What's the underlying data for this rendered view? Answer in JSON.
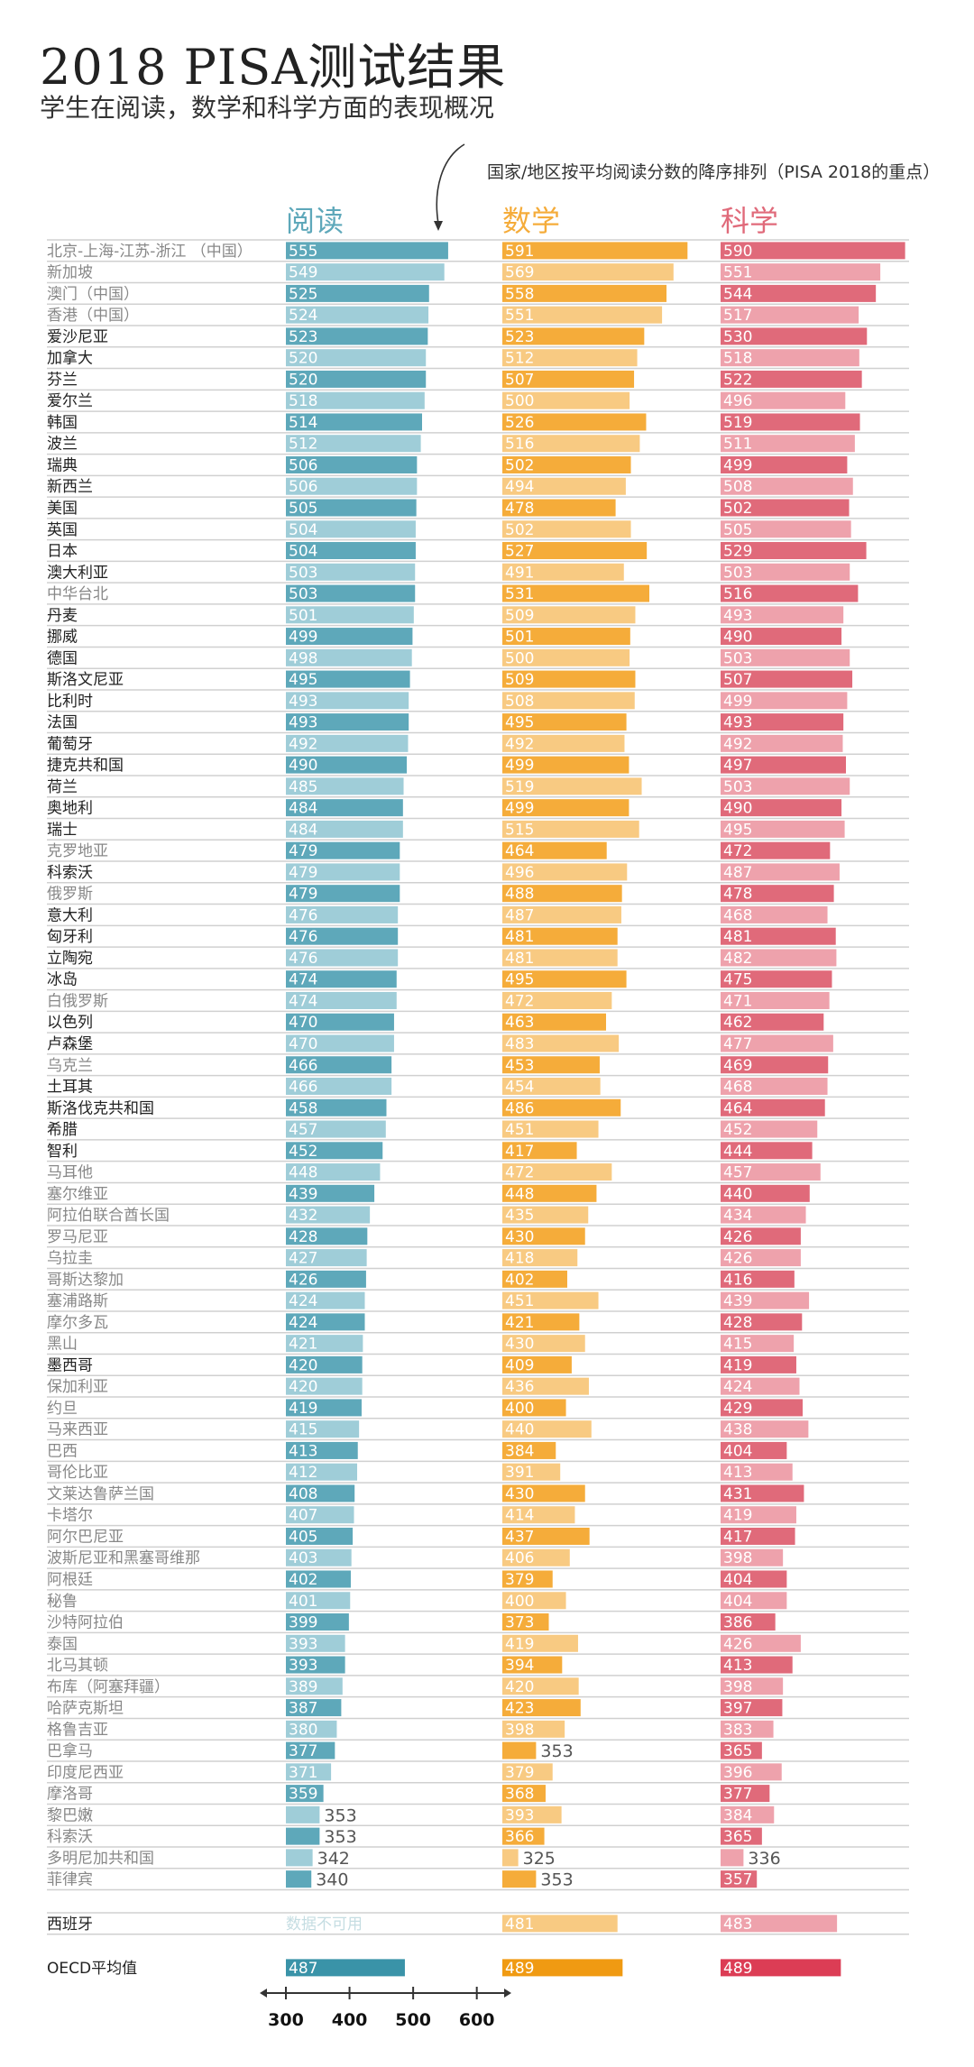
{
  "title": "2018 PISA测试结果",
  "subtitle": "学生在阅读，数学和科学方面的表现概况",
  "chart_data": {
    "type": "bar",
    "title": "2018 PISA测试结果",
    "subtitle": "学生在阅读，数学和科学方面的表现概况",
    "annotation": "国家/地区按平均阅读分数的降序排列（PISA 2018的重点）",
    "series_names": [
      "阅读",
      "数学",
      "科学"
    ],
    "colors": {
      "reading": [
        "#5ea8ba",
        "#9fcdd8",
        "#3a93a8"
      ],
      "math": [
        "#f5ac3a",
        "#f8ca82",
        "#f09a12"
      ],
      "science": [
        "#e06a7a",
        "#eea2ac",
        "#dc3d55"
      ]
    },
    "xlim": [
      300,
      640
    ],
    "ticks": [
      300,
      400,
      500,
      600
    ],
    "rows": [
      {
        "name": "北京-上海-江苏-浙江 （中国）",
        "oecd": false,
        "values": [
          555,
          591,
          590
        ]
      },
      {
        "name": "新加坡",
        "oecd": false,
        "values": [
          549,
          569,
          551
        ]
      },
      {
        "name": "澳门（中国）",
        "oecd": false,
        "values": [
          525,
          558,
          544
        ]
      },
      {
        "name": "香港（中国）",
        "oecd": false,
        "values": [
          524,
          551,
          517
        ]
      },
      {
        "name": "爱沙尼亚",
        "oecd": true,
        "values": [
          523,
          523,
          530
        ]
      },
      {
        "name": "加拿大",
        "oecd": true,
        "values": [
          520,
          512,
          518
        ]
      },
      {
        "name": "芬兰",
        "oecd": true,
        "values": [
          520,
          507,
          522
        ]
      },
      {
        "name": "爱尔兰",
        "oecd": true,
        "values": [
          518,
          500,
          496
        ]
      },
      {
        "name": "韩国",
        "oecd": true,
        "values": [
          514,
          526,
          519
        ]
      },
      {
        "name": "波兰",
        "oecd": true,
        "values": [
          512,
          516,
          511
        ]
      },
      {
        "name": "瑞典",
        "oecd": true,
        "values": [
          506,
          502,
          499
        ]
      },
      {
        "name": "新西兰",
        "oecd": true,
        "values": [
          506,
          494,
          508
        ]
      },
      {
        "name": "美国",
        "oecd": true,
        "values": [
          505,
          478,
          502
        ]
      },
      {
        "name": "英国",
        "oecd": true,
        "values": [
          504,
          502,
          505
        ]
      },
      {
        "name": "日本",
        "oecd": true,
        "values": [
          504,
          527,
          529
        ]
      },
      {
        "name": "澳大利亚",
        "oecd": true,
        "values": [
          503,
          491,
          503
        ]
      },
      {
        "name": "中华台北",
        "oecd": false,
        "values": [
          503,
          531,
          516
        ]
      },
      {
        "name": "丹麦",
        "oecd": true,
        "values": [
          501,
          509,
          493
        ]
      },
      {
        "name": "挪威",
        "oecd": true,
        "values": [
          499,
          501,
          490
        ]
      },
      {
        "name": "德国",
        "oecd": true,
        "values": [
          498,
          500,
          503
        ]
      },
      {
        "name": "斯洛文尼亚",
        "oecd": true,
        "values": [
          495,
          509,
          507
        ]
      },
      {
        "name": "比利时",
        "oecd": true,
        "values": [
          493,
          508,
          499
        ]
      },
      {
        "name": "法国",
        "oecd": true,
        "values": [
          493,
          495,
          493
        ]
      },
      {
        "name": "葡萄牙",
        "oecd": true,
        "values": [
          492,
          492,
          492
        ]
      },
      {
        "name": "捷克共和国",
        "oecd": true,
        "values": [
          490,
          499,
          497
        ]
      },
      {
        "name": "荷兰",
        "oecd": true,
        "values": [
          485,
          519,
          503
        ]
      },
      {
        "name": "奥地利",
        "oecd": true,
        "values": [
          484,
          499,
          490
        ]
      },
      {
        "name": "瑞士",
        "oecd": true,
        "values": [
          484,
          515,
          495
        ]
      },
      {
        "name": "克罗地亚",
        "oecd": false,
        "values": [
          479,
          464,
          472
        ]
      },
      {
        "name": "科索沃",
        "oecd": true,
        "values": [
          479,
          496,
          487
        ]
      },
      {
        "name": "俄罗斯",
        "oecd": false,
        "values": [
          479,
          488,
          478
        ]
      },
      {
        "name": "意大利",
        "oecd": true,
        "values": [
          476,
          487,
          468
        ]
      },
      {
        "name": "匈牙利",
        "oecd": true,
        "values": [
          476,
          481,
          481
        ]
      },
      {
        "name": "立陶宛",
        "oecd": true,
        "values": [
          476,
          481,
          482
        ]
      },
      {
        "name": "冰岛",
        "oecd": true,
        "values": [
          474,
          495,
          475
        ]
      },
      {
        "name": "白俄罗斯",
        "oecd": false,
        "values": [
          474,
          472,
          471
        ]
      },
      {
        "name": "以色列",
        "oecd": true,
        "values": [
          470,
          463,
          462
        ]
      },
      {
        "name": "卢森堡",
        "oecd": true,
        "values": [
          470,
          483,
          477
        ]
      },
      {
        "name": "乌克兰",
        "oecd": false,
        "values": [
          466,
          453,
          469
        ]
      },
      {
        "name": "土耳其",
        "oecd": true,
        "values": [
          466,
          454,
          468
        ]
      },
      {
        "name": "斯洛伐克共和国",
        "oecd": true,
        "values": [
          458,
          486,
          464
        ]
      },
      {
        "name": "希腊",
        "oecd": true,
        "values": [
          457,
          451,
          452
        ]
      },
      {
        "name": "智利",
        "oecd": true,
        "values": [
          452,
          417,
          444
        ]
      },
      {
        "name": "马耳他",
        "oecd": false,
        "values": [
          448,
          472,
          457
        ]
      },
      {
        "name": "塞尔维亚",
        "oecd": false,
        "values": [
          439,
          448,
          440
        ]
      },
      {
        "name": "阿拉伯联合酋长国",
        "oecd": false,
        "values": [
          432,
          435,
          434
        ]
      },
      {
        "name": "罗马尼亚",
        "oecd": false,
        "values": [
          428,
          430,
          426
        ]
      },
      {
        "name": "乌拉圭",
        "oecd": false,
        "values": [
          427,
          418,
          426
        ]
      },
      {
        "name": "哥斯达黎加",
        "oecd": false,
        "values": [
          426,
          402,
          416
        ]
      },
      {
        "name": "塞浦路斯",
        "oecd": false,
        "values": [
          424,
          451,
          439
        ]
      },
      {
        "name": "摩尔多瓦",
        "oecd": false,
        "values": [
          424,
          421,
          428
        ]
      },
      {
        "name": "黑山",
        "oecd": false,
        "values": [
          421,
          430,
          415
        ]
      },
      {
        "name": "墨西哥",
        "oecd": true,
        "values": [
          420,
          409,
          419
        ]
      },
      {
        "name": "保加利亚",
        "oecd": false,
        "values": [
          420,
          436,
          424
        ]
      },
      {
        "name": "约旦",
        "oecd": false,
        "values": [
          419,
          400,
          429
        ]
      },
      {
        "name": "马来西亚",
        "oecd": false,
        "values": [
          415,
          440,
          438
        ]
      },
      {
        "name": "巴西",
        "oecd": false,
        "values": [
          413,
          384,
          404
        ]
      },
      {
        "name": "哥伦比亚",
        "oecd": false,
        "values": [
          412,
          391,
          413
        ]
      },
      {
        "name": "文莱达鲁萨兰国",
        "oecd": false,
        "values": [
          408,
          430,
          431
        ]
      },
      {
        "name": "卡塔尔",
        "oecd": false,
        "values": [
          407,
          414,
          419
        ]
      },
      {
        "name": "阿尔巴尼亚",
        "oecd": false,
        "values": [
          405,
          437,
          417
        ]
      },
      {
        "name": "波斯尼亚和黑塞哥维那",
        "oecd": false,
        "values": [
          403,
          406,
          398
        ]
      },
      {
        "name": "阿根廷",
        "oecd": false,
        "values": [
          402,
          379,
          404
        ]
      },
      {
        "name": "秘鲁",
        "oecd": false,
        "values": [
          401,
          400,
          404
        ]
      },
      {
        "name": "沙特阿拉伯",
        "oecd": false,
        "values": [
          399,
          373,
          386
        ]
      },
      {
        "name": "泰国",
        "oecd": false,
        "values": [
          393,
          419,
          426
        ]
      },
      {
        "name": "北马其顿",
        "oecd": false,
        "values": [
          393,
          394,
          413
        ]
      },
      {
        "name": "布库（阿塞拜疆）",
        "oecd": false,
        "values": [
          389,
          420,
          398
        ]
      },
      {
        "name": "哈萨克斯坦",
        "oecd": false,
        "values": [
          387,
          423,
          397
        ]
      },
      {
        "name": "格鲁吉亚",
        "oecd": false,
        "values": [
          380,
          398,
          383
        ]
      },
      {
        "name": "巴拿马",
        "oecd": false,
        "values": [
          377,
          353,
          365
        ]
      },
      {
        "name": "印度尼西亚",
        "oecd": false,
        "values": [
          371,
          379,
          396
        ]
      },
      {
        "name": "摩洛哥",
        "oecd": false,
        "values": [
          359,
          368,
          377
        ]
      },
      {
        "name": "黎巴嫩",
        "oecd": false,
        "values": [
          353,
          393,
          384
        ]
      },
      {
        "name": "科索沃",
        "oecd": false,
        "values": [
          353,
          366,
          365
        ]
      },
      {
        "name": "多明尼加共和国",
        "oecd": false,
        "values": [
          342,
          325,
          336
        ]
      },
      {
        "name": "菲律宾",
        "oecd": false,
        "values": [
          340,
          353,
          357
        ]
      }
    ],
    "spain": {
      "name": "西班牙",
      "values": [
        null,
        481,
        483
      ],
      "na_label": "数据不可用"
    },
    "oecd_average": {
      "name": "OECD平均值",
      "values": [
        487,
        489,
        489
      ]
    }
  }
}
